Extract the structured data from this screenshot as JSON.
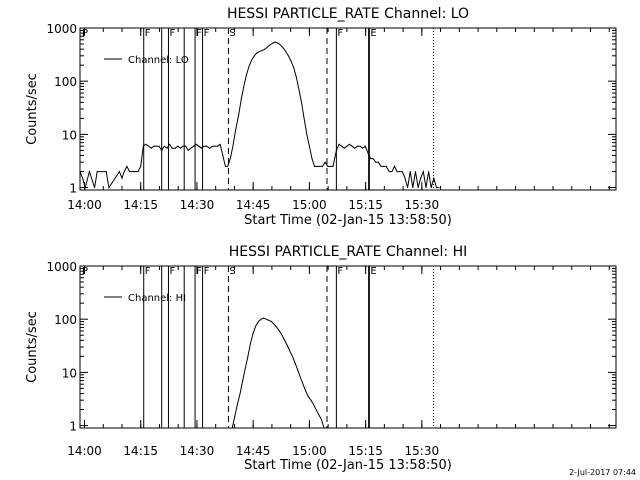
{
  "footer_timestamp": "2-Jul-2017 07:44",
  "chart_data": [
    {
      "type": "line",
      "title": "HESSI PARTICLE_RATE Channel: LO",
      "legend": "Channel: LO",
      "xlabel": "Start Time (02-Jan-15 13:58:50)",
      "ylabel": "Counts/sec",
      "xlim_minutes": [
        0,
        143
      ],
      "ylim": [
        0.9,
        1000
      ],
      "yscale": "log",
      "x_ticks": [
        {
          "minute": 1.2,
          "label": "14:00"
        },
        {
          "minute": 16.2,
          "label": "14:15"
        },
        {
          "minute": 31.2,
          "label": "14:30"
        },
        {
          "minute": 46.2,
          "label": "14:45"
        },
        {
          "minute": 61.2,
          "label": "15:00"
        },
        {
          "minute": 76.2,
          "label": "15:15"
        },
        {
          "minute": 91.2,
          "label": "15:30"
        }
      ],
      "y_ticks": [
        {
          "value": 1,
          "label": "1"
        },
        {
          "value": 10,
          "label": "10"
        },
        {
          "value": 100,
          "label": "100"
        },
        {
          "value": 1000,
          "label": "1000"
        }
      ],
      "event_lines": [
        {
          "minute": 17.0,
          "label": "F",
          "style": "solid"
        },
        {
          "minute": 21.8,
          "label": "",
          "style": "solid"
        },
        {
          "minute": 23.6,
          "label": "F",
          "style": "solid"
        },
        {
          "minute": 27.8,
          "label": "",
          "style": "solid"
        },
        {
          "minute": 30.7,
          "label": "F",
          "style": "solid"
        },
        {
          "minute": 32.7,
          "label": "F",
          "style": "solid"
        },
        {
          "minute": 39.6,
          "label": "S",
          "style": "dashed"
        },
        {
          "minute": 65.9,
          "label": "",
          "style": "dashed"
        },
        {
          "minute": 68.4,
          "label": "F",
          "style": "solid"
        },
        {
          "minute": 77.0,
          "label": "",
          "style": "solid"
        },
        {
          "minute": 77.2,
          "label": "E",
          "style": "solid"
        },
        {
          "minute": 94.3,
          "label": "",
          "style": "dotted"
        }
      ],
      "corner_label": "P",
      "x": [
        0,
        0.7,
        1.4,
        2.5,
        3.9,
        4.6,
        7.0,
        7.7,
        10.5,
        11.2,
        11.8,
        12.5,
        13.2,
        13.9,
        14.8,
        15.5,
        16.2,
        16.9,
        17.5,
        18.3,
        19.0,
        19.7,
        20.4,
        21.1,
        21.8,
        22.5,
        23.2,
        23.9,
        24.6,
        25.4,
        26.1,
        26.8,
        27.5,
        28.2,
        28.9,
        29.6,
        30.3,
        31.0,
        31.7,
        32.4,
        33.1,
        33.8,
        34.6,
        35.3,
        36.0,
        36.7,
        37.4,
        38.1,
        38.8,
        39.4,
        40.1,
        40.8,
        41.5,
        42.3,
        43.0,
        43.7,
        44.4,
        45.1,
        45.8,
        46.5,
        47.2,
        47.9,
        48.6,
        49.3,
        50.0,
        50.7,
        51.4,
        52.1,
        52.8,
        53.5,
        54.2,
        54.9,
        55.6,
        56.3,
        57.0,
        57.7,
        58.4,
        59.1,
        59.8,
        60.5,
        61.2,
        61.9,
        62.6,
        63.3,
        64.0,
        64.7,
        65.4,
        66.1,
        66.8,
        67.5,
        68.4,
        69.1,
        69.8,
        70.5,
        71.2,
        71.9,
        72.6,
        73.3,
        74.0,
        74.7,
        75.4,
        76.1,
        76.8,
        77.5,
        78.2,
        78.9,
        79.6,
        80.3,
        81.0,
        81.7,
        82.5,
        83.2,
        83.9,
        84.6,
        85.3,
        86.0,
        86.7,
        87.4,
        88.1,
        88.8,
        89.5,
        90.2,
        90.9,
        91.6,
        92.3,
        93.0,
        93.7,
        94.4,
        95.1,
        95.8
      ],
      "values": [
        2,
        1.5,
        1,
        2,
        1,
        2,
        2,
        1,
        2,
        1.5,
        2,
        2.5,
        2,
        2,
        2,
        2,
        2.5,
        6,
        6.5,
        6,
        5.5,
        6,
        6,
        6,
        5,
        6,
        5.5,
        6.5,
        5.5,
        5.5,
        6,
        5.5,
        6,
        6,
        5,
        5.5,
        6,
        6.5,
        6,
        5.5,
        6,
        6,
        5.5,
        6,
        6,
        6,
        6.5,
        4,
        2.5,
        2.5,
        3.5,
        6,
        12,
        23,
        45,
        80,
        130,
        190,
        250,
        300,
        340,
        360,
        380,
        400,
        440,
        480,
        520,
        540,
        520,
        480,
        420,
        360,
        300,
        240,
        180,
        120,
        70,
        40,
        20,
        10,
        6,
        3.5,
        2.5,
        2.5,
        2.5,
        2.5,
        3,
        2.5,
        2.5,
        2.5,
        5,
        6.5,
        6,
        5.5,
        6,
        6.5,
        6,
        5.5,
        6,
        6,
        5.5,
        6,
        4.5,
        3.5,
        3.5,
        3,
        3,
        2.5,
        2.5,
        2.5,
        2,
        2,
        2.5,
        2,
        2,
        2,
        1.5,
        1,
        2,
        1,
        2,
        1,
        1.5,
        2,
        1,
        2,
        1,
        1.5,
        1,
        1
      ]
    },
    {
      "type": "line",
      "title": "HESSI PARTICLE_RATE Channel: HI",
      "legend": "Channel: HI",
      "xlabel": "Start Time (02-Jan-15 13:58:50)",
      "ylabel": "Counts/sec",
      "xlim_minutes": [
        0,
        143
      ],
      "ylim": [
        0.9,
        1000
      ],
      "yscale": "log",
      "x_ticks": [
        {
          "minute": 1.2,
          "label": "14:00"
        },
        {
          "minute": 16.2,
          "label": "14:15"
        },
        {
          "minute": 31.2,
          "label": "14:30"
        },
        {
          "minute": 46.2,
          "label": "14:45"
        },
        {
          "minute": 61.2,
          "label": "15:00"
        },
        {
          "minute": 76.2,
          "label": "15:15"
        },
        {
          "minute": 91.2,
          "label": "15:30"
        }
      ],
      "y_ticks": [
        {
          "value": 1,
          "label": "1"
        },
        {
          "value": 10,
          "label": "10"
        },
        {
          "value": 100,
          "label": "100"
        },
        {
          "value": 1000,
          "label": "1000"
        }
      ],
      "event_lines": [
        {
          "minute": 17.0,
          "label": "F",
          "style": "solid"
        },
        {
          "minute": 21.8,
          "label": "",
          "style": "solid"
        },
        {
          "minute": 23.6,
          "label": "F",
          "style": "solid"
        },
        {
          "minute": 27.8,
          "label": "",
          "style": "solid"
        },
        {
          "minute": 30.7,
          "label": "F",
          "style": "solid"
        },
        {
          "minute": 32.7,
          "label": "F",
          "style": "solid"
        },
        {
          "minute": 39.6,
          "label": "S",
          "style": "dashed"
        },
        {
          "minute": 65.9,
          "label": "",
          "style": "dashed"
        },
        {
          "minute": 68.4,
          "label": "F",
          "style": "solid"
        },
        {
          "minute": 77.0,
          "label": "",
          "style": "solid"
        },
        {
          "minute": 77.2,
          "label": "E",
          "style": "solid"
        },
        {
          "minute": 94.3,
          "label": "",
          "style": "dotted"
        }
      ],
      "corner_label": "P",
      "x": [
        40.6,
        41.3,
        42.0,
        42.7,
        43.4,
        44.1,
        44.8,
        45.5,
        46.2,
        46.9,
        47.6,
        48.3,
        49.0,
        49.7,
        50.4,
        51.1,
        51.8,
        52.5,
        53.2,
        53.9,
        54.6,
        55.3,
        56.0,
        56.7,
        57.4,
        58.1,
        58.8,
        59.5,
        60.2,
        60.9,
        61.6,
        62.3,
        63.0,
        63.7,
        64.4,
        65.1
      ],
      "values": [
        0.9,
        1.5,
        2.5,
        4,
        7,
        12,
        20,
        35,
        55,
        75,
        90,
        100,
        105,
        100,
        95,
        90,
        80,
        70,
        60,
        50,
        40,
        32,
        25,
        20,
        15,
        11,
        8,
        6,
        4.5,
        3.5,
        3,
        2.5,
        2,
        1.6,
        1.3,
        0.9
      ]
    }
  ]
}
